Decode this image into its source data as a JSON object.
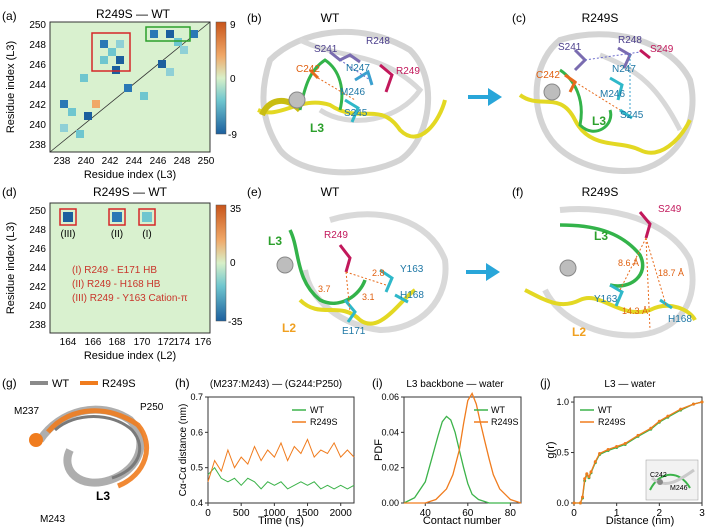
{
  "panels": {
    "a": {
      "letter": "(a)",
      "title": "R249S — WT",
      "xlabel": "Residue index (L3)",
      "ylabel": "Residue index (L3)",
      "xticks": [
        "238",
        "240",
        "242",
        "244",
        "246",
        "248",
        "250"
      ],
      "yticks": [
        "250",
        "248",
        "246",
        "244",
        "242",
        "240",
        "238"
      ],
      "cbar": [
        "9",
        "0",
        "-9"
      ]
    },
    "b": {
      "letter": "(b)",
      "title": "WT",
      "labels": [
        "S241",
        "R248",
        "C242",
        "N247",
        "R249",
        "M246",
        "S245",
        "L3"
      ]
    },
    "c": {
      "letter": "(c)",
      "title": "R249S",
      "labels": [
        "S241",
        "R248",
        "S249",
        "C242",
        "N247",
        "M246",
        "L3",
        "S245"
      ]
    },
    "d": {
      "letter": "(d)",
      "title": "R249S — WT",
      "xlabel": "Residue index (L2)",
      "ylabel": "Residue index (L3)",
      "xticks": [
        "164",
        "166",
        "168",
        "170",
        "172",
        "174",
        "176"
      ],
      "yticks": [
        "250",
        "248",
        "246",
        "244",
        "242",
        "240",
        "238"
      ],
      "cbar": [
        "35",
        "0",
        "-35"
      ],
      "box_labels": [
        "(III)",
        "(II)",
        "(I)"
      ],
      "legend": [
        "(I) R249 - E171 HB",
        "(II) R249 - H168 HB",
        "(III) R249 - Y163 Cation-π"
      ]
    },
    "e": {
      "letter": "(e)",
      "title": "WT",
      "labels": [
        "L3",
        "R249",
        "Y163",
        "H168",
        "E171",
        "L2",
        "3.7",
        "3.1",
        "2.8"
      ]
    },
    "f": {
      "letter": "(f)",
      "title": "R249S",
      "labels": [
        "S249",
        "L3",
        "Y163",
        "H168",
        "L2",
        "8.6 Å",
        "18.7 Å",
        "14.3 Å"
      ]
    },
    "g": {
      "letter": "(g)",
      "legend": [
        "WT",
        "R249S"
      ],
      "labels": [
        "M237",
        "P250",
        "M243",
        "L3"
      ]
    },
    "h": {
      "letter": "(h)",
      "title": "(M237:M243) — (G244:P250)",
      "xlabel": "Time (ns)",
      "ylabel": "Cα-Cα distance (nm)",
      "legend": [
        "WT",
        "R249S"
      ]
    },
    "i": {
      "letter": "(i)",
      "title": "L3 backbone — water",
      "xlabel": "Contact number",
      "ylabel": "PDF",
      "legend": [
        "WT",
        "R249S"
      ]
    },
    "j": {
      "letter": "(j)",
      "title": "L3 — water",
      "xlabel": "Distance (nm)",
      "ylabel": "g(r)",
      "legend": [
        "WT",
        "R249S"
      ],
      "inset_labels": [
        "C242",
        "M246"
      ]
    }
  },
  "colors": {
    "wt": "#3cb34a",
    "r249s": "#f07c1e",
    "wt_gray": "#8a8a8a",
    "box_red": "#d62728",
    "box_green": "#2ca02c"
  },
  "chart_data": [
    {
      "type": "line",
      "panel": "h",
      "title": "(M237:M243) — (G244:P250)",
      "xlabel": "Time (ns)",
      "ylabel": "Cα-Cα distance (nm)",
      "xlim": [
        0,
        2200
      ],
      "ylim": [
        0.4,
        0.7
      ],
      "xticks": [
        "0",
        "500",
        "1000",
        "1500",
        "2000"
      ],
      "yticks": [
        "0.4",
        "0.5",
        "0.6",
        "0.7"
      ],
      "series": [
        {
          "name": "WT",
          "x": [
            0,
            100,
            200,
            300,
            400,
            500,
            600,
            700,
            800,
            900,
            1000,
            1100,
            1200,
            1300,
            1400,
            1500,
            1600,
            1700,
            1800,
            1900,
            2000,
            2100,
            2200
          ],
          "values": [
            0.48,
            0.5,
            0.47,
            0.46,
            0.47,
            0.45,
            0.47,
            0.46,
            0.44,
            0.46,
            0.45,
            0.46,
            0.44,
            0.45,
            0.46,
            0.45,
            0.46,
            0.44,
            0.45,
            0.44,
            0.45,
            0.44,
            0.45
          ]
        },
        {
          "name": "R249S",
          "x": [
            0,
            100,
            200,
            300,
            400,
            500,
            600,
            700,
            800,
            900,
            1000,
            1100,
            1200,
            1300,
            1400,
            1500,
            1600,
            1700,
            1800,
            1900,
            2000,
            2100,
            2200
          ],
          "values": [
            0.46,
            0.52,
            0.49,
            0.55,
            0.5,
            0.53,
            0.51,
            0.56,
            0.52,
            0.55,
            0.53,
            0.57,
            0.52,
            0.56,
            0.54,
            0.58,
            0.53,
            0.55,
            0.54,
            0.57,
            0.53,
            0.55,
            0.53
          ]
        }
      ]
    },
    {
      "type": "line",
      "panel": "i",
      "title": "L3 backbone — water",
      "xlabel": "Contact number",
      "ylabel": "PDF",
      "xlim": [
        30,
        85
      ],
      "ylim": [
        0,
        0.06
      ],
      "xticks": [
        "40",
        "60",
        "80"
      ],
      "yticks": [
        "0.00",
        "0.02",
        "0.04",
        "0.06"
      ],
      "series": [
        {
          "name": "WT",
          "x": [
            30,
            35,
            40,
            43,
            46,
            48,
            50,
            52,
            54,
            56,
            58,
            60,
            62,
            65,
            70,
            75,
            80
          ],
          "values": [
            0.0,
            0.003,
            0.012,
            0.025,
            0.038,
            0.046,
            0.049,
            0.047,
            0.04,
            0.03,
            0.02,
            0.011,
            0.005,
            0.002,
            0.0,
            0.0,
            0.0
          ]
        },
        {
          "name": "R249S",
          "x": [
            30,
            40,
            45,
            50,
            53,
            56,
            58,
            60,
            62,
            64,
            66,
            68,
            70,
            72,
            75,
            80,
            85
          ],
          "values": [
            0.0,
            0.0,
            0.002,
            0.008,
            0.016,
            0.03,
            0.045,
            0.058,
            0.062,
            0.056,
            0.045,
            0.035,
            0.025,
            0.016,
            0.008,
            0.002,
            0.0
          ]
        }
      ]
    },
    {
      "type": "line",
      "panel": "j",
      "title": "L3 — water",
      "xlabel": "Distance (nm)",
      "ylabel": "g(r)",
      "xlim": [
        0,
        3
      ],
      "ylim": [
        0,
        1.05
      ],
      "xticks": [
        "0",
        "1",
        "2",
        "3"
      ],
      "yticks": [
        "0.0",
        "0.5",
        "1.0"
      ],
      "series": [
        {
          "name": "WT",
          "x": [
            0,
            0.15,
            0.2,
            0.25,
            0.3,
            0.35,
            0.4,
            0.5,
            0.6,
            0.8,
            1.0,
            1.2,
            1.5,
            1.8,
            2.0,
            2.2,
            2.5,
            2.8,
            3.0
          ],
          "values": [
            0,
            0,
            0.05,
            0.22,
            0.28,
            0.25,
            0.3,
            0.4,
            0.48,
            0.52,
            0.55,
            0.58,
            0.66,
            0.73,
            0.8,
            0.85,
            0.92,
            0.98,
            1.0
          ]
        },
        {
          "name": "R249S",
          "x": [
            0,
            0.15,
            0.2,
            0.25,
            0.3,
            0.35,
            0.4,
            0.5,
            0.6,
            0.8,
            1.0,
            1.2,
            1.5,
            1.8,
            2.0,
            2.2,
            2.5,
            2.8,
            3.0
          ],
          "values": [
            0,
            0,
            0.06,
            0.24,
            0.29,
            0.26,
            0.31,
            0.41,
            0.49,
            0.53,
            0.56,
            0.59,
            0.67,
            0.74,
            0.81,
            0.86,
            0.93,
            0.98,
            1.0
          ]
        }
      ]
    }
  ]
}
